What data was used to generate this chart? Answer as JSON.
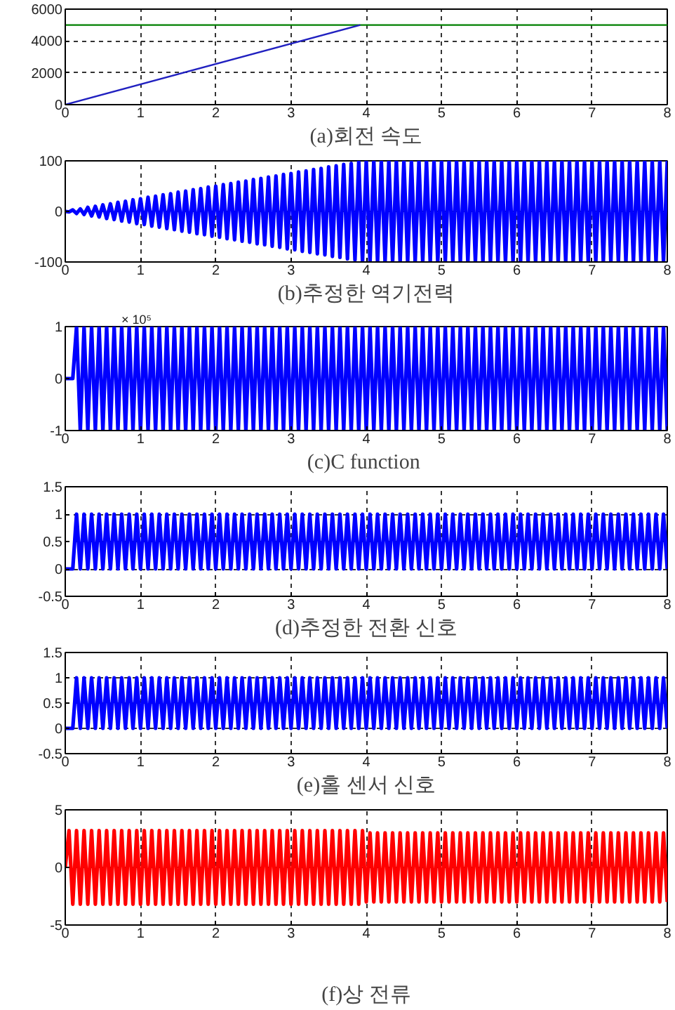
{
  "chart_data": [
    {
      "type": "line",
      "xlabel": "(a)회전 속도",
      "xlim": [
        0,
        8
      ],
      "ylim": [
        0,
        6000
      ],
      "xticks": [
        0,
        1,
        2,
        3,
        4,
        5,
        6,
        7,
        8
      ],
      "yticks": [
        0,
        2000,
        4000,
        6000
      ],
      "grid": true,
      "series": [
        {
          "color": "#008000",
          "x": [
            0,
            8
          ],
          "values": [
            5000,
            5000
          ]
        },
        {
          "color": "#2020c0",
          "x": [
            0,
            3.92
          ],
          "values": [
            0,
            5000
          ]
        }
      ]
    },
    {
      "type": "line",
      "xlabel": "(b)추정한 역기전력",
      "xlim": [
        0,
        8
      ],
      "ylim": [
        -100,
        100
      ],
      "xticks": [
        0,
        1,
        2,
        3,
        4,
        5,
        6,
        7,
        8
      ],
      "yticks": [
        -100,
        0,
        100
      ],
      "grid": true,
      "series": [
        {
          "color": "#0000ff",
          "x": [
            0,
            0.05,
            0.1,
            0.15,
            0.2,
            0.25,
            0.3,
            0.35,
            0.4,
            0.45,
            0.5,
            0.55,
            0.6,
            0.65,
            0.7,
            0.75,
            0.8,
            0.85,
            0.9,
            0.95,
            1,
            1.05,
            1.1,
            1.15,
            1.2,
            1.25,
            1.3,
            1.35,
            1.4,
            1.45,
            1.5,
            1.55,
            1.6,
            1.65,
            1.7,
            1.75,
            1.8,
            1.85,
            1.9,
            1.95,
            2,
            2.05,
            2.1,
            2.15,
            2.2,
            2.25,
            2.3,
            2.35,
            2.4,
            2.45,
            2.5,
            2.55,
            2.6,
            2.65,
            2.7,
            2.75,
            2.8,
            2.85,
            2.9,
            2.95,
            3,
            3.05,
            3.1,
            3.15,
            3.2,
            3.25,
            3.3,
            3.35,
            3.4,
            3.45,
            3.5,
            3.55,
            3.6,
            3.65,
            3.7,
            3.75,
            3.8,
            3.85,
            3.9,
            3.95,
            4,
            4.05,
            4.1,
            4.15,
            4.2,
            4.25,
            4.3,
            4.35,
            4.4,
            4.45,
            4.5,
            4.55,
            4.6,
            4.65,
            4.7,
            4.75,
            4.8,
            4.85,
            4.9,
            4.95,
            5,
            5.05,
            5.1,
            5.15,
            5.2,
            5.25,
            5.3,
            5.35,
            5.4,
            5.45,
            5.5,
            5.55,
            5.6,
            5.65,
            5.7,
            5.75,
            5.8,
            5.85,
            5.9,
            5.95,
            6,
            6.05,
            6.1,
            6.15,
            6.2,
            6.25,
            6.3,
            6.35,
            6.4,
            6.45,
            6.5,
            6.55,
            6.6,
            6.65,
            6.7,
            6.75,
            6.8,
            6.85,
            6.9,
            6.95,
            7,
            7.05,
            7.1,
            7.15,
            7.2,
            7.25,
            7.3,
            7.35,
            7.4,
            7.45,
            7.5,
            7.55,
            7.6,
            7.65,
            7.7,
            7.75,
            7.8,
            7.85,
            7.9,
            7.95,
            8
          ],
          "values": [
            0,
            -1,
            3,
            -4,
            5,
            -6,
            8,
            -9,
            10,
            -11,
            13,
            -14,
            15,
            -16,
            18,
            -19,
            20,
            -21,
            23,
            -24,
            25,
            -26,
            28,
            -29,
            30,
            -31,
            33,
            -34,
            35,
            -36,
            38,
            -39,
            40,
            -41,
            43,
            -44,
            45,
            -46,
            48,
            -49,
            50,
            -51,
            53,
            -54,
            55,
            -56,
            58,
            -59,
            60,
            -61,
            63,
            -64,
            65,
            -66,
            68,
            -69,
            70,
            -71,
            73,
            -74,
            75,
            -76,
            78,
            -79,
            80,
            -81,
            83,
            -84,
            85,
            -86,
            88,
            -89,
            90,
            -91,
            93,
            -94,
            95,
            -96,
            98,
            -99,
            100,
            -100,
            100,
            -100,
            100,
            -100,
            100,
            -100,
            100,
            -100,
            100,
            -100,
            100,
            -100,
            100,
            -100,
            100,
            -100,
            100,
            -100,
            100,
            -100,
            100,
            -100,
            100,
            -100,
            100,
            -100,
            100,
            -100,
            100,
            -100,
            100,
            -100,
            100,
            -100,
            100,
            -100,
            100,
            -100,
            100,
            -100,
            100,
            -100,
            100,
            -100,
            100,
            -100,
            100,
            -100,
            100,
            -100,
            100,
            -100,
            100,
            -100,
            100,
            -100,
            100,
            -100,
            100,
            -100,
            100,
            -100,
            100,
            -100,
            100,
            -100,
            100,
            -100,
            100,
            -100,
            100,
            -100,
            100,
            -100,
            100,
            -100,
            100,
            -100,
            100
          ]
        }
      ]
    },
    {
      "type": "line",
      "xlabel": "(c)C  function",
      "annotations": [
        "× 10⁵"
      ],
      "xlim": [
        0,
        8
      ],
      "ylim": [
        -1,
        1
      ],
      "xticks": [
        0,
        1,
        2,
        3,
        4,
        5,
        6,
        7,
        8
      ],
      "yticks": [
        -1,
        0,
        1
      ],
      "series": [
        {
          "color": "#0000ff",
          "x": [
            0,
            0.05,
            0.1,
            0.15,
            0.2,
            0.25,
            0.3,
            0.35,
            0.4,
            0.45,
            0.5,
            0.55,
            0.6,
            0.65,
            0.7,
            0.75,
            0.8,
            0.85,
            0.9,
            0.95,
            1,
            1.05,
            1.1,
            1.15,
            1.2,
            1.25,
            1.3,
            1.35,
            1.4,
            1.45,
            1.5,
            1.55,
            1.6,
            1.65,
            1.7,
            1.75,
            1.8,
            1.85,
            1.9,
            1.95,
            2,
            2.05,
            2.1,
            2.15,
            2.2,
            2.25,
            2.3,
            2.35,
            2.4,
            2.45,
            2.5,
            2.55,
            2.6,
            2.65,
            2.7,
            2.75,
            2.8,
            2.85,
            2.9,
            2.95,
            3,
            3.05,
            3.1,
            3.15,
            3.2,
            3.25,
            3.3,
            3.35,
            3.4,
            3.45,
            3.5,
            3.55,
            3.6,
            3.65,
            3.7,
            3.75,
            3.8,
            3.85,
            3.9,
            3.95,
            4,
            4.05,
            4.1,
            4.15,
            4.2,
            4.25,
            4.3,
            4.35,
            4.4,
            4.45,
            4.5,
            4.55,
            4.6,
            4.65,
            4.7,
            4.75,
            4.8,
            4.85,
            4.9,
            4.95,
            5,
            5.05,
            5.1,
            5.15,
            5.2,
            5.25,
            5.3,
            5.35,
            5.4,
            5.45,
            5.5,
            5.55,
            5.6,
            5.65,
            5.7,
            5.75,
            5.8,
            5.85,
            5.9,
            5.95,
            6,
            6.05,
            6.1,
            6.15,
            6.2,
            6.25,
            6.3,
            6.35,
            6.4,
            6.45,
            6.5,
            6.55,
            6.6,
            6.65,
            6.7,
            6.75,
            6.8,
            6.85,
            6.9,
            6.95,
            7,
            7.05,
            7.1,
            7.15,
            7.2,
            7.25,
            7.3,
            7.35,
            7.4,
            7.45,
            7.5,
            7.55,
            7.6,
            7.65,
            7.7,
            7.75,
            7.8,
            7.85,
            7.9,
            7.95,
            8
          ],
          "values": [
            0,
            0,
            0,
            1,
            -1,
            1,
            -1,
            1,
            -1,
            1,
            -1,
            1,
            -1,
            1,
            -1,
            1,
            -1,
            1,
            -1,
            1,
            -1,
            1,
            -1,
            1,
            -1,
            1,
            -1,
            1,
            -1,
            1,
            -1,
            1,
            -1,
            1,
            -1,
            1,
            -1,
            1,
            -1,
            1,
            -1,
            1,
            -1,
            1,
            -1,
            1,
            -1,
            1,
            -1,
            1,
            -1,
            1,
            -1,
            1,
            -1,
            1,
            -1,
            1,
            -1,
            1,
            -1,
            1,
            -1,
            1,
            -1,
            1,
            -1,
            1,
            -1,
            1,
            -1,
            1,
            -1,
            1,
            -1,
            1,
            -1,
            1,
            -1,
            1,
            -1,
            1,
            -1,
            1,
            -1,
            1,
            -1,
            1,
            -1,
            1,
            -1,
            1,
            -1,
            1,
            -1,
            1,
            -1,
            1,
            -1,
            1,
            -1,
            1,
            -1,
            1,
            -1,
            1,
            -1,
            1,
            -1,
            1,
            -1,
            1,
            -1,
            1,
            -1,
            1,
            -1,
            1,
            -1,
            1,
            -1,
            1,
            -1,
            1,
            -1,
            1,
            -1,
            1,
            -1,
            1,
            -1,
            1,
            -1,
            1,
            -1,
            1,
            -1,
            1,
            -1,
            1,
            -1,
            1,
            -1,
            1,
            -1,
            1,
            -1,
            1,
            -1,
            1,
            -1,
            1,
            -1,
            1,
            -1,
            1,
            -1,
            1,
            -1,
            1,
            -1
          ]
        }
      ]
    },
    {
      "type": "line",
      "xlabel": "(d)추정한 전환 신호",
      "xlim": [
        0,
        8
      ],
      "ylim": [
        -0.5,
        1.5
      ],
      "xticks": [
        0,
        1,
        2,
        3,
        4,
        5,
        6,
        7,
        8
      ],
      "yticks": [
        -0.5,
        0,
        0.5,
        1,
        1.5
      ],
      "grid": true,
      "series": [
        {
          "color": "#0000ff",
          "x": [
            0,
            0.05,
            0.1,
            0.15,
            0.2,
            0.25,
            0.3,
            0.35,
            0.4,
            0.45,
            0.5,
            0.55,
            0.6,
            0.65,
            0.7,
            0.75,
            0.8,
            0.85,
            0.9,
            0.95,
            1,
            1.05,
            1.1,
            1.15,
            1.2,
            1.25,
            1.3,
            1.35,
            1.4,
            1.45,
            1.5,
            1.55,
            1.6,
            1.65,
            1.7,
            1.75,
            1.8,
            1.85,
            1.9,
            1.95,
            2,
            2.05,
            2.1,
            2.15,
            2.2,
            2.25,
            2.3,
            2.35,
            2.4,
            2.45,
            2.5,
            2.55,
            2.6,
            2.65,
            2.7,
            2.75,
            2.8,
            2.85,
            2.9,
            2.95,
            3,
            3.05,
            3.1,
            3.15,
            3.2,
            3.25,
            3.3,
            3.35,
            3.4,
            3.45,
            3.5,
            3.55,
            3.6,
            3.65,
            3.7,
            3.75,
            3.8,
            3.85,
            3.9,
            3.95,
            4,
            4.05,
            4.1,
            4.15,
            4.2,
            4.25,
            4.3,
            4.35,
            4.4,
            4.45,
            4.5,
            4.55,
            4.6,
            4.65,
            4.7,
            4.75,
            4.8,
            4.85,
            4.9,
            4.95,
            5,
            5.05,
            5.1,
            5.15,
            5.2,
            5.25,
            5.3,
            5.35,
            5.4,
            5.45,
            5.5,
            5.55,
            5.6,
            5.65,
            5.7,
            5.75,
            5.8,
            5.85,
            5.9,
            5.95,
            6,
            6.05,
            6.1,
            6.15,
            6.2,
            6.25,
            6.3,
            6.35,
            6.4,
            6.45,
            6.5,
            6.55,
            6.6,
            6.65,
            6.7,
            6.75,
            6.8,
            6.85,
            6.9,
            6.95,
            7,
            7.05,
            7.1,
            7.15,
            7.2,
            7.25,
            7.3,
            7.35,
            7.4,
            7.45,
            7.5,
            7.55,
            7.6,
            7.65,
            7.7,
            7.75,
            7.8,
            7.85,
            7.9,
            7.95,
            8
          ],
          "values": [
            0,
            0,
            0,
            1,
            0,
            1,
            0,
            1,
            0,
            1,
            0,
            1,
            0,
            1,
            0,
            1,
            0,
            1,
            0,
            1,
            0,
            1,
            0,
            1,
            0,
            1,
            0,
            1,
            0,
            1,
            0,
            1,
            0,
            1,
            0,
            1,
            0,
            1,
            0,
            1,
            0,
            1,
            0,
            1,
            0,
            1,
            0,
            1,
            0,
            1,
            0,
            1,
            0,
            1,
            0,
            1,
            0,
            1,
            0,
            1,
            0,
            1,
            0,
            1,
            0,
            1,
            0,
            1,
            0,
            1,
            0,
            1,
            0,
            1,
            0,
            1,
            0,
            1,
            0,
            1,
            0,
            1,
            0,
            1,
            0,
            1,
            0,
            1,
            0,
            1,
            0,
            1,
            0,
            1,
            0,
            1,
            0,
            1,
            0,
            1,
            0,
            1,
            0,
            1,
            0,
            1,
            0,
            1,
            0,
            1,
            0,
            1,
            0,
            1,
            0,
            1,
            0,
            1,
            0,
            1,
            0,
            1,
            0,
            1,
            0,
            1,
            0,
            1,
            0,
            1,
            0,
            1,
            0,
            1,
            0,
            1,
            0,
            1,
            0,
            1,
            0,
            1,
            0,
            1,
            0,
            1,
            0,
            1,
            0,
            1,
            0,
            1,
            0,
            1,
            0,
            1,
            0,
            1,
            0,
            1,
            0
          ]
        }
      ]
    },
    {
      "type": "line",
      "xlabel": "(e)홀 센서 신호",
      "xlim": [
        0,
        8
      ],
      "ylim": [
        -0.5,
        1.5
      ],
      "xticks": [
        0,
        1,
        2,
        3,
        4,
        5,
        6,
        7,
        8
      ],
      "yticks": [
        -0.5,
        0,
        0.5,
        1,
        1.5
      ],
      "grid": true,
      "series": [
        {
          "color": "#0000ff",
          "x": [
            0,
            0.05,
            0.1,
            0.15,
            0.2,
            0.25,
            0.3,
            0.35,
            0.4,
            0.45,
            0.5,
            0.55,
            0.6,
            0.65,
            0.7,
            0.75,
            0.8,
            0.85,
            0.9,
            0.95,
            1,
            1.05,
            1.1,
            1.15,
            1.2,
            1.25,
            1.3,
            1.35,
            1.4,
            1.45,
            1.5,
            1.55,
            1.6,
            1.65,
            1.7,
            1.75,
            1.8,
            1.85,
            1.9,
            1.95,
            2,
            2.05,
            2.1,
            2.15,
            2.2,
            2.25,
            2.3,
            2.35,
            2.4,
            2.45,
            2.5,
            2.55,
            2.6,
            2.65,
            2.7,
            2.75,
            2.8,
            2.85,
            2.9,
            2.95,
            3,
            3.05,
            3.1,
            3.15,
            3.2,
            3.25,
            3.3,
            3.35,
            3.4,
            3.45,
            3.5,
            3.55,
            3.6,
            3.65,
            3.7,
            3.75,
            3.8,
            3.85,
            3.9,
            3.95,
            4,
            4.05,
            4.1,
            4.15,
            4.2,
            4.25,
            4.3,
            4.35,
            4.4,
            4.45,
            4.5,
            4.55,
            4.6,
            4.65,
            4.7,
            4.75,
            4.8,
            4.85,
            4.9,
            4.95,
            5,
            5.05,
            5.1,
            5.15,
            5.2,
            5.25,
            5.3,
            5.35,
            5.4,
            5.45,
            5.5,
            5.55,
            5.6,
            5.65,
            5.7,
            5.75,
            5.8,
            5.85,
            5.9,
            5.95,
            6,
            6.05,
            6.1,
            6.15,
            6.2,
            6.25,
            6.3,
            6.35,
            6.4,
            6.45,
            6.5,
            6.55,
            6.6,
            6.65,
            6.7,
            6.75,
            6.8,
            6.85,
            6.9,
            6.95,
            7,
            7.05,
            7.1,
            7.15,
            7.2,
            7.25,
            7.3,
            7.35,
            7.4,
            7.45,
            7.5,
            7.55,
            7.6,
            7.65,
            7.7,
            7.75,
            7.8,
            7.85,
            7.9,
            7.95,
            8
          ],
          "values": [
            0,
            0,
            0,
            1,
            0,
            1,
            0,
            1,
            0,
            1,
            0,
            1,
            0,
            1,
            0,
            1,
            0,
            1,
            0,
            1,
            0,
            1,
            0,
            1,
            0,
            1,
            0,
            1,
            0,
            1,
            0,
            1,
            0,
            1,
            0,
            1,
            0,
            1,
            0,
            1,
            0,
            1,
            0,
            1,
            0,
            1,
            0,
            1,
            0,
            1,
            0,
            1,
            0,
            1,
            0,
            1,
            0,
            1,
            0,
            1,
            0,
            1,
            0,
            1,
            0,
            1,
            0,
            1,
            0,
            1,
            0,
            1,
            0,
            1,
            0,
            1,
            0,
            1,
            0,
            1,
            0,
            1,
            0,
            1,
            0,
            1,
            0,
            1,
            0,
            1,
            0,
            1,
            0,
            1,
            0,
            1,
            0,
            1,
            0,
            1,
            0,
            1,
            0,
            1,
            0,
            1,
            0,
            1,
            0,
            1,
            0,
            1,
            0,
            1,
            0,
            1,
            0,
            1,
            0,
            1,
            0,
            1,
            0,
            1,
            0,
            1,
            0,
            1,
            0,
            1,
            0,
            1,
            0,
            1,
            0,
            1,
            0,
            1,
            0,
            1,
            0,
            1,
            0,
            1,
            0,
            1,
            0,
            1,
            0,
            1,
            0,
            1,
            0,
            1,
            0,
            1,
            0,
            1,
            0,
            1,
            0
          ]
        }
      ]
    },
    {
      "type": "line",
      "xlabel": "(f)상 전류",
      "xlim": [
        0,
        8
      ],
      "ylim": [
        -5,
        5
      ],
      "xticks": [
        0,
        1,
        2,
        3,
        4,
        5,
        6,
        7,
        8
      ],
      "yticks": [
        -5,
        0,
        5
      ],
      "grid": true,
      "series": [
        {
          "color": "#ff0000",
          "x": [
            0,
            0.05,
            0.1,
            0.15,
            0.2,
            0.25,
            0.3,
            0.35,
            0.4,
            0.45,
            0.5,
            0.55,
            0.6,
            0.65,
            0.7,
            0.75,
            0.8,
            0.85,
            0.9,
            0.95,
            1,
            1.05,
            1.1,
            1.15,
            1.2,
            1.25,
            1.3,
            1.35,
            1.4,
            1.45,
            1.5,
            1.55,
            1.6,
            1.65,
            1.7,
            1.75,
            1.8,
            1.85,
            1.9,
            1.95,
            2,
            2.05,
            2.1,
            2.15,
            2.2,
            2.25,
            2.3,
            2.35,
            2.4,
            2.45,
            2.5,
            2.55,
            2.6,
            2.65,
            2.7,
            2.75,
            2.8,
            2.85,
            2.9,
            2.95,
            3,
            3.05,
            3.1,
            3.15,
            3.2,
            3.25,
            3.3,
            3.35,
            3.4,
            3.45,
            3.5,
            3.55,
            3.6,
            3.65,
            3.7,
            3.75,
            3.8,
            3.85,
            3.9,
            3.95,
            4,
            4.05,
            4.1,
            4.15,
            4.2,
            4.25,
            4.3,
            4.35,
            4.4,
            4.45,
            4.5,
            4.55,
            4.6,
            4.65,
            4.7,
            4.75,
            4.8,
            4.85,
            4.9,
            4.95,
            5,
            5.05,
            5.1,
            5.15,
            5.2,
            5.25,
            5.3,
            5.35,
            5.4,
            5.45,
            5.5,
            5.55,
            5.6,
            5.65,
            5.7,
            5.75,
            5.8,
            5.85,
            5.9,
            5.95,
            6,
            6.05,
            6.1,
            6.15,
            6.2,
            6.25,
            6.3,
            6.35,
            6.4,
            6.45,
            6.5,
            6.55,
            6.6,
            6.65,
            6.7,
            6.75,
            6.8,
            6.85,
            6.9,
            6.95,
            7,
            7.05,
            7.1,
            7.15,
            7.2,
            7.25,
            7.3,
            7.35,
            7.4,
            7.45,
            7.5,
            7.55,
            7.6,
            7.65,
            7.7,
            7.75,
            7.8,
            7.85,
            7.9,
            7.95,
            8
          ],
          "values": [
            0,
            3.2,
            -3.2,
            3.2,
            -3.2,
            3.2,
            -3.2,
            3.2,
            -3.2,
            3.2,
            -3.2,
            3.2,
            -3.2,
            3.2,
            -3.2,
            3.2,
            -3.2,
            3.2,
            -3.2,
            3.2,
            -3.2,
            3.2,
            -3.2,
            3.2,
            -3.2,
            3.2,
            -3.2,
            3.2,
            -3.2,
            3.2,
            -3.2,
            3.2,
            -3.2,
            3.2,
            -3.2,
            3.2,
            -3.2,
            3.2,
            -3.2,
            3.2,
            -3.2,
            3.2,
            -3.2,
            3.2,
            -3.2,
            3.2,
            -3.2,
            3.2,
            -3.2,
            3.2,
            -3.2,
            3.2,
            -3.2,
            3.2,
            -3.2,
            3.2,
            -3.2,
            3.2,
            -3.2,
            3.2,
            -3.2,
            3.2,
            -3.2,
            3.2,
            -3.2,
            3.2,
            -3.2,
            3.2,
            -3.2,
            3.2,
            -3.2,
            3.2,
            -3.2,
            3.2,
            -3.2,
            3.2,
            -3.2,
            3.2,
            -3.2,
            3.2,
            -3,
            3,
            -3,
            3,
            -3,
            3,
            -3,
            3,
            -3,
            3,
            -3,
            3,
            -3,
            3,
            -3,
            3,
            -3,
            3,
            -3,
            3,
            -3,
            3,
            -3,
            3,
            -3,
            3,
            -3,
            3,
            -3,
            3,
            -3,
            3,
            -3,
            3,
            -3,
            3,
            -3,
            3,
            -3,
            3,
            -3,
            3,
            -3,
            3,
            -3,
            3,
            -3,
            3,
            -3,
            3,
            -3,
            3,
            -3,
            3,
            -3,
            3,
            -3,
            3,
            -3,
            3,
            -3,
            3,
            -3,
            3,
            -3,
            3,
            -3,
            3,
            -3,
            3,
            -3,
            3,
            -3,
            3,
            -3,
            3,
            -3,
            3,
            -3,
            3,
            -3
          ]
        }
      ]
    }
  ]
}
